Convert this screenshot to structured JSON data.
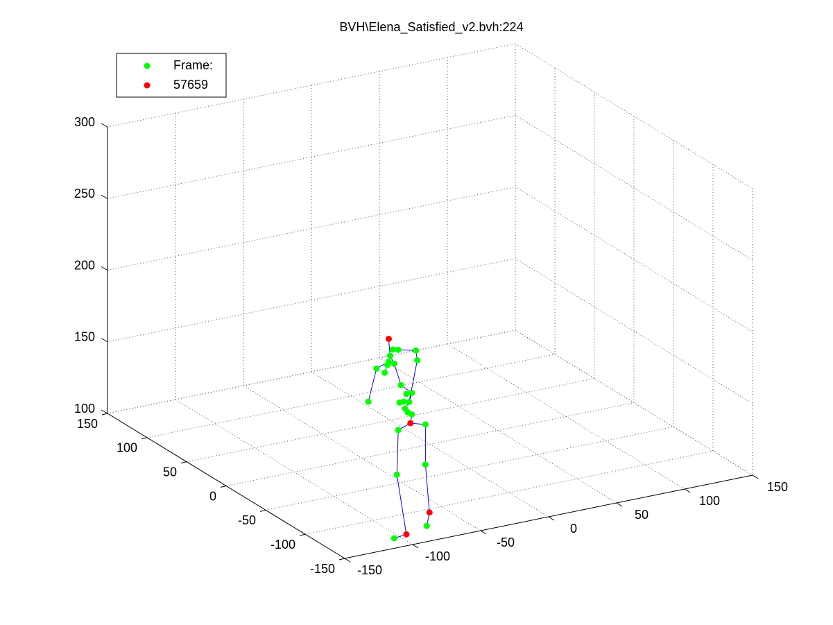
{
  "chart_data": {
    "type": "scatter3d",
    "title": "BVH\\Elena_Satisfied_v2.bvh:224",
    "xlim": [
      -150,
      150
    ],
    "xticks": [
      -150,
      -100,
      -50,
      0,
      50,
      100,
      150
    ],
    "ylim": [
      -150,
      150
    ],
    "yticks": [
      -150,
      -100,
      -50,
      0,
      50,
      100,
      150
    ],
    "zlim": [
      100,
      300
    ],
    "zticks": [
      100,
      150,
      200,
      250,
      300
    ],
    "grid": true,
    "legend": "upper left",
    "series": [
      {
        "name": "Frame:",
        "color": "#00ff00",
        "x": [
          -103,
          -99,
          -86,
          -105,
          -106,
          -102,
          -107,
          -115,
          -109,
          -85,
          -121,
          -97,
          -93,
          -89,
          -98,
          -95,
          -91,
          -94,
          -92,
          -89,
          -99,
          -79,
          -100,
          -79,
          -102,
          -78
        ],
        "y": [
          -130,
          -130,
          -130,
          -130,
          -130,
          -130,
          -130,
          -130,
          -130,
          -130,
          -130,
          -130,
          -130,
          -130,
          -130,
          -130,
          -130,
          -130,
          -130,
          -130,
          -130,
          -130,
          -130,
          -130,
          -130,
          -130
        ],
        "z": [
          230,
          229,
          226,
          226,
          222,
          220,
          220,
          219,
          215,
          219,
          197,
          204,
          197,
          197,
          192,
          192,
          191,
          187,
          184,
          182,
          173,
          173,
          142,
          145,
          98,
          102
        ]
      },
      {
        "name": "57659",
        "color": "#ff0000",
        "x": [
          -106,
          -90,
          -93,
          -76
        ],
        "y": [
          -130,
          -130,
          -130,
          -130
        ],
        "z": [
          238,
          176,
          99,
          111
        ]
      }
    ],
    "bones": {
      "color": "#0000ff",
      "x": [
        -90,
        -99,
        -100,
        -93,
        -102,
        null,
        -90,
        -79,
        -79,
        -76,
        -78,
        null,
        -90,
        -89,
        -92,
        -94,
        -91,
        -89,
        -97,
        -102,
        -105,
        -106,
        null,
        -99,
        -86,
        -85,
        -91,
        null,
        -106,
        -115,
        -121,
        null,
        -107,
        -109
      ],
      "y": [
        -130,
        -130,
        -130,
        -130,
        -130,
        null,
        -130,
        -130,
        -130,
        -130,
        -130,
        null,
        -130,
        -130,
        -130,
        -130,
        -130,
        -130,
        -130,
        -130,
        -130,
        -130,
        null,
        -130,
        -130,
        -130,
        -130,
        null,
        -130,
        -130,
        -130,
        null,
        -130,
        -130
      ],
      "z": [
        176,
        173,
        142,
        99,
        98,
        null,
        176,
        173,
        145,
        111,
        102,
        null,
        176,
        182,
        184,
        187,
        191,
        197,
        204,
        220,
        226,
        238,
        null,
        229,
        226,
        219,
        191,
        null,
        222,
        219,
        197,
        null,
        220,
        215
      ]
    }
  }
}
